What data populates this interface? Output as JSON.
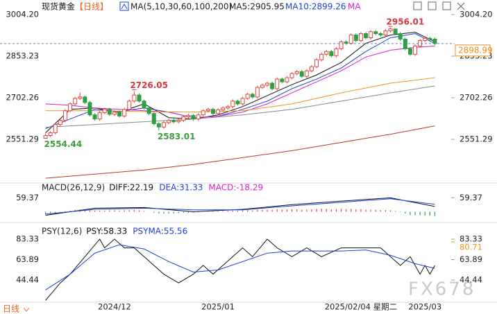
{
  "header": {
    "title": "现货黄金",
    "period": "【日线】",
    "ma_label": "MA(5,10,30,60,100,200)",
    "ma5": "MA5:2905.95",
    "ma10": "MA10:2899.26",
    "ma_more": "MA"
  },
  "footer": {
    "period_button": "日线",
    "watermark": "FX678"
  },
  "chart_data": [
    {
      "type": "candlestick",
      "categories": [
        null,
        null,
        null,
        null,
        null,
        null,
        null,
        null,
        null,
        null,
        null,
        null,
        null,
        null,
        "2024/12",
        null,
        null,
        null,
        null,
        null,
        null,
        null,
        null,
        null,
        null,
        null,
        null,
        null,
        null,
        null,
        null,
        null,
        null,
        null,
        null,
        "2025/01",
        null,
        null,
        null,
        null,
        null,
        null,
        null,
        null,
        null,
        null,
        null,
        null,
        null,
        null,
        null,
        null,
        null,
        null,
        null,
        null,
        null,
        null,
        null,
        null,
        null,
        null,
        null,
        null,
        "2025/02/04 星期二",
        null,
        null,
        null,
        null,
        null,
        null,
        null,
        null,
        null,
        null,
        null,
        null,
        "2025/03",
        null,
        null
      ],
      "open": [
        2555,
        2565,
        2575,
        2605,
        2620,
        2655,
        2680,
        2700,
        2705,
        2685,
        2640,
        2625,
        2648,
        2660,
        2642,
        2650,
        2636,
        2660,
        2690,
        2712,
        2690,
        2665,
        2645,
        2608,
        2596,
        2612,
        2620,
        2615,
        2620,
        2633,
        2638,
        2625,
        2640,
        2655,
        2660,
        2645,
        2658,
        2665,
        2670,
        2690,
        2680,
        2700,
        2715,
        2705,
        2740,
        2748,
        2755,
        2735,
        2770,
        2760,
        2775,
        2790,
        2797,
        2780,
        2800,
        2815,
        2840,
        2860,
        2870,
        2855,
        2880,
        2905,
        2900,
        2930,
        2910,
        2935,
        2920,
        2942,
        2935,
        2930,
        2945,
        2952,
        2935,
        2915,
        2880,
        2860,
        2890,
        2910,
        2918,
        2915
      ],
      "high": [
        2572,
        2581,
        2611,
        2626,
        2661,
        2686,
        2706,
        2721,
        2711,
        2691,
        2646,
        2654,
        2666,
        2666,
        2656,
        2656,
        2666,
        2696,
        2726.05,
        2718,
        2696,
        2671,
        2651,
        2614,
        2618,
        2626,
        2626,
        2626,
        2639,
        2644,
        2644,
        2646,
        2661,
        2666,
        2666,
        2664,
        2671,
        2676,
        2696,
        2696,
        2706,
        2721,
        2721,
        2746,
        2754,
        2761,
        2761,
        2776,
        2776,
        2781,
        2796,
        2803,
        2803,
        2806,
        2821,
        2846,
        2866,
        2876,
        2876,
        2886,
        2911,
        2911,
        2936,
        2936,
        2941,
        2941,
        2948,
        2948,
        2941,
        2951,
        2956.01,
        2950,
        2941,
        2921,
        2886,
        2896,
        2916,
        2924,
        2924,
        2921
      ],
      "low": [
        2554.44,
        2559,
        2569,
        2599,
        2614,
        2649,
        2674,
        2694,
        2679,
        2634,
        2619,
        2619,
        2642,
        2636,
        2636,
        2630,
        2630,
        2654,
        2684,
        2684,
        2659,
        2639,
        2602,
        2583.01,
        2590,
        2606,
        2609,
        2609,
        2614,
        2627,
        2619,
        2619,
        2634,
        2649,
        2639,
        2639,
        2652,
        2659,
        2664,
        2674,
        2674,
        2694,
        2699,
        2699,
        2734,
        2742,
        2729,
        2729,
        2754,
        2754,
        2769,
        2784,
        2774,
        2774,
        2794,
        2809,
        2834,
        2854,
        2849,
        2849,
        2874,
        2894,
        2894,
        2904,
        2904,
        2914,
        2914,
        2929,
        2924,
        2924,
        2939,
        2929,
        2909,
        2874,
        2854,
        2854,
        2884,
        2904,
        2909,
        2893
      ],
      "close": [
        2565,
        2575,
        2605,
        2620,
        2655,
        2680,
        2700,
        2705,
        2685,
        2640,
        2625,
        2648,
        2660,
        2642,
        2650,
        2636,
        2660,
        2690,
        2712,
        2690,
        2665,
        2645,
        2608,
        2596,
        2612,
        2620,
        2615,
        2620,
        2633,
        2638,
        2625,
        2640,
        2655,
        2660,
        2645,
        2658,
        2665,
        2670,
        2690,
        2680,
        2700,
        2715,
        2705,
        2740,
        2748,
        2755,
        2735,
        2770,
        2760,
        2775,
        2790,
        2797,
        2780,
        2800,
        2815,
        2840,
        2860,
        2870,
        2855,
        2880,
        2905,
        2900,
        2930,
        2910,
        2935,
        2920,
        2942,
        2935,
        2930,
        2945,
        2952,
        2935,
        2915,
        2880,
        2860,
        2890,
        2910,
        2918,
        2915,
        2898.99
      ],
      "up_color": "#e8413a",
      "down_color": "#2f9e44",
      "high_label_color": "#d9363e",
      "low_label_color": "#3f9b3f",
      "last_price_color": "#f08c1a",
      "ylim": [
        2397.8,
        3031.9
      ],
      "yticks": [
        {
          "value": 3004.2,
          "label": "3004.20"
        },
        2853.23,
        2702.26,
        2551.29
      ],
      "series": [
        {
          "color": "#111111",
          "x": [
            0,
            5,
            10,
            15,
            20,
            25,
            30,
            35,
            40,
            45,
            50,
            55,
            60,
            65,
            70,
            75,
            79
          ],
          "values": [
            2575,
            2660,
            2665,
            2650,
            2680,
            2630,
            2625,
            2640,
            2670,
            2710,
            2750,
            2785,
            2830,
            2900,
            2930,
            2940,
            2905.95
          ]
        },
        {
          "color": "#1c3fd6",
          "x": [
            0,
            5,
            10,
            15,
            20,
            25,
            30,
            35,
            40,
            45,
            50,
            55,
            60,
            65,
            70,
            75,
            79
          ],
          "values": [
            2590,
            2625,
            2660,
            2652,
            2665,
            2650,
            2630,
            2635,
            2660,
            2690,
            2735,
            2770,
            2810,
            2870,
            2920,
            2935,
            2899.26
          ]
        },
        {
          "color": "#d81ec8",
          "x": [
            0,
            5,
            10,
            15,
            20,
            25,
            30,
            35,
            40,
            45,
            50,
            55,
            60,
            65,
            70,
            75,
            79
          ],
          "values": [
            2680,
            2675,
            2665,
            2660,
            2655,
            2650,
            2630,
            2635,
            2650,
            2680,
            2720,
            2760,
            2800,
            2850,
            2875,
            2885,
            2890
          ]
        },
        {
          "color": "#f0921e",
          "x": [
            0,
            10,
            20,
            30,
            40,
            50,
            60,
            70,
            79
          ],
          "values": [
            2655,
            2655,
            2652,
            2650,
            2655,
            2680,
            2720,
            2755,
            2775
          ]
        },
        {
          "color": "#888888",
          "x": [
            0,
            10,
            20,
            30,
            40,
            50,
            60,
            70,
            79
          ],
          "values": [
            2595,
            2605,
            2615,
            2625,
            2640,
            2660,
            2690,
            2720,
            2745
          ]
        },
        {
          "color": "#b8342c",
          "x": [
            0,
            10,
            20,
            30,
            40,
            50,
            60,
            70,
            79
          ],
          "values": [
            2410,
            2425,
            2440,
            2460,
            2485,
            2510,
            2540,
            2570,
            2600
          ]
        }
      ]
    },
    {
      "type": "macd",
      "title": "MACD(26,12,9)",
      "labels": [
        {
          "text": "DIFF:22.19",
          "color": "#111111"
        },
        {
          "text": "DEA:31.33",
          "color": "#1c3fd6"
        },
        {
          "text": "MACD:-18.29",
          "color": "#d81ec8"
        }
      ],
      "ylim": [
        -36.8,
        115.9
      ],
      "yticks": [
        59.37
      ],
      "up_color": "#e8413a",
      "down_color": "#2f9e44",
      "bars": [
        -10,
        -8,
        -5,
        -2,
        2,
        5,
        8,
        9,
        8,
        6,
        5,
        4,
        5,
        6,
        6,
        5,
        6,
        7,
        8,
        6,
        3,
        0,
        -4,
        -7,
        -8,
        -8,
        -7,
        -6,
        -5,
        -4,
        -3,
        -2,
        0,
        1,
        2,
        2,
        3,
        4,
        5,
        5,
        6,
        7,
        6,
        8,
        9,
        9,
        8,
        10,
        9,
        10,
        10,
        10,
        8,
        9,
        10,
        12,
        13,
        12,
        10,
        11,
        12,
        11,
        12,
        10,
        11,
        9,
        9,
        8,
        7,
        7,
        6,
        3,
        -2,
        -8,
        -14,
        -15,
        -15,
        -16,
        -17,
        -18.29
      ],
      "series": [
        {
          "color": "#111111",
          "x": [
            0,
            10,
            20,
            30,
            40,
            50,
            60,
            70,
            79
          ],
          "values": [
            -15,
            15,
            18,
            0,
            10,
            30,
            45,
            59,
            22.19
          ]
        },
        {
          "color": "#1c3fd6",
          "x": [
            0,
            10,
            20,
            30,
            40,
            50,
            60,
            70,
            79
          ],
          "values": [
            -10,
            10,
            15,
            8,
            8,
            25,
            40,
            55,
            31.33
          ]
        }
      ]
    },
    {
      "type": "line",
      "title": "PSY(12,6)",
      "labels": [
        {
          "text": "PSY:58.33",
          "color": "#111111"
        },
        {
          "text": "PSYMA:55.56",
          "color": "#1c3fd6"
        }
      ],
      "ylim": [
        24,
        95.85
      ],
      "yticks": [
        83.33,
        63.89,
        44.44
      ],
      "marker": {
        "value": 80.71,
        "color": "#f0921e"
      },
      "series": [
        {
          "color": "#111111",
          "x": [
            0,
            3,
            5,
            8,
            11,
            12,
            14,
            16,
            18,
            20,
            22,
            24,
            27,
            30,
            32,
            34,
            36,
            38,
            40,
            42,
            45,
            47,
            50,
            53,
            56,
            60,
            64,
            68,
            70,
            72,
            74,
            75,
            76,
            77,
            78,
            79
          ],
          "values": [
            25,
            41.67,
            50,
            66.67,
            83.33,
            75,
            83.33,
            75,
            75,
            66.67,
            58.33,
            50,
            41.67,
            50,
            58.33,
            50,
            58.33,
            66.67,
            75,
            66.67,
            83.33,
            75,
            66.67,
            75,
            66.67,
            75,
            75,
            75,
            66.67,
            58.33,
            66.67,
            58.33,
            50,
            58.33,
            50,
            58.33
          ]
        },
        {
          "color": "#1c3fd6",
          "x": [
            0,
            5,
            10,
            15,
            20,
            25,
            30,
            35,
            40,
            45,
            50,
            55,
            60,
            65,
            70,
            75,
            79
          ],
          "values": [
            35,
            50,
            70,
            78,
            74,
            62,
            52,
            54,
            62,
            70,
            72,
            72,
            72,
            73,
            68,
            60,
            55.56
          ]
        }
      ]
    }
  ]
}
